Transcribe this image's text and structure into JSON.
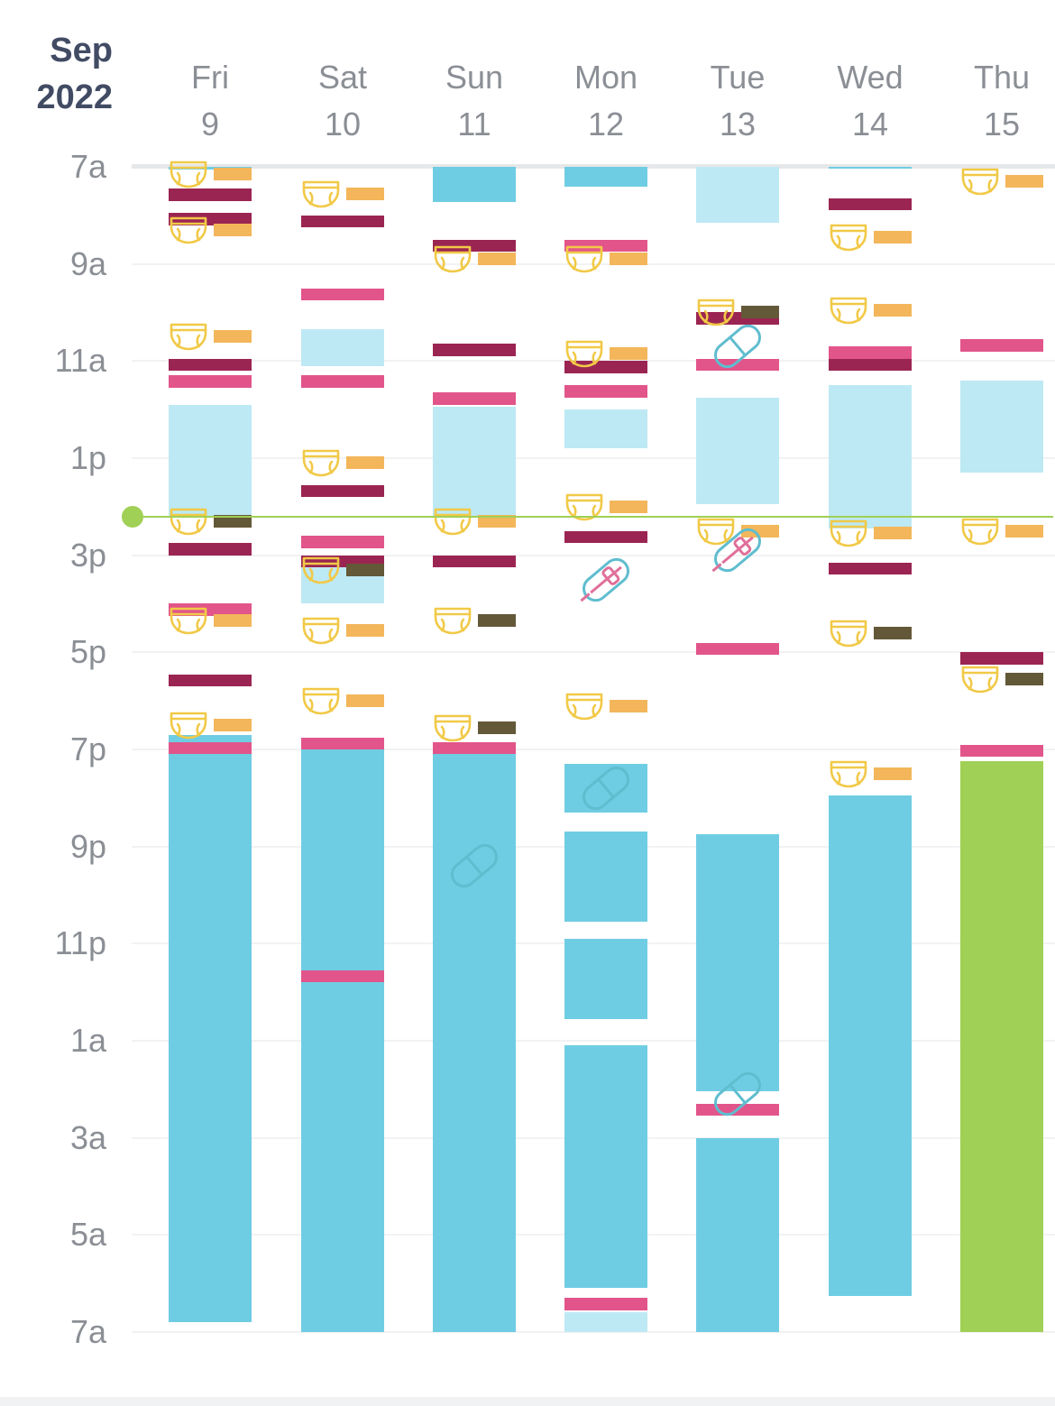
{
  "header": {
    "month": "Sep",
    "year": "2022"
  },
  "days": [
    {
      "dow": "Fri",
      "date": "9"
    },
    {
      "dow": "Sat",
      "date": "10"
    },
    {
      "dow": "Sun",
      "date": "11"
    },
    {
      "dow": "Mon",
      "date": "12"
    },
    {
      "dow": "Tue",
      "date": "13"
    },
    {
      "dow": "Wed",
      "date": "14"
    },
    {
      "dow": "Thu",
      "date": "15"
    }
  ],
  "hour_labels": [
    "7a",
    "9a",
    "11a",
    "1p",
    "3p",
    "5p",
    "7p",
    "9p",
    "11p",
    "1a",
    "3a",
    "5a",
    "7a"
  ],
  "colors": {
    "sleep_night": "#6fcde3",
    "sleep_nap": "#bde9f4",
    "sleep_in_progress": "#a0d055",
    "feed_left": "#e2558a",
    "feed_right": "#9b2552",
    "diaper_wet": "#f3b65a",
    "diaper_dirty": "#635838",
    "diaper_icon": "#f1c947",
    "now": "#a0d055"
  },
  "now_hour": 14.2,
  "events": [
    {
      "day": 0,
      "type": "sleep_night",
      "start": 7.0,
      "end": 7.05
    },
    {
      "day": 0,
      "type": "sleep_nap",
      "start": 11.9,
      "end": 14.2
    },
    {
      "day": 0,
      "type": "sleep_night",
      "start": 18.7,
      "end": 30.8
    },
    {
      "day": 0,
      "type": "feed_right",
      "start": 7.45,
      "end": 7.7
    },
    {
      "day": 0,
      "type": "feed_right",
      "start": 7.95,
      "end": 8.2
    },
    {
      "day": 0,
      "type": "feed_right",
      "start": 10.95,
      "end": 11.2
    },
    {
      "day": 0,
      "type": "feed_left",
      "start": 11.3,
      "end": 11.55
    },
    {
      "day": 0,
      "type": "feed_right",
      "start": 14.75,
      "end": 15.0
    },
    {
      "day": 0,
      "type": "feed_left",
      "start": 16.0,
      "end": 16.25
    },
    {
      "day": 0,
      "type": "feed_right",
      "start": 17.45,
      "end": 17.7
    },
    {
      "day": 0,
      "type": "feed_left",
      "start": 18.85,
      "end": 19.1
    },
    {
      "day": 0,
      "type": "diaper_wet",
      "start": 7.15
    },
    {
      "day": 0,
      "type": "diaper_wet",
      "start": 8.3
    },
    {
      "day": 0,
      "type": "diaper_wet",
      "start": 10.5
    },
    {
      "day": 0,
      "type": "diaper_dirty",
      "start": 14.3
    },
    {
      "day": 0,
      "type": "diaper_wet",
      "start": 16.35
    },
    {
      "day": 0,
      "type": "diaper_wet",
      "start": 18.5
    },
    {
      "day": 1,
      "type": "sleep_nap",
      "start": 10.35,
      "end": 11.1
    },
    {
      "day": 1,
      "type": "sleep_nap",
      "start": 15.2,
      "end": 16.0
    },
    {
      "day": 1,
      "type": "sleep_night",
      "start": 19.0,
      "end": 31.0
    },
    {
      "day": 1,
      "type": "feed_right",
      "start": 8.0,
      "end": 8.25
    },
    {
      "day": 1,
      "type": "feed_left",
      "start": 9.5,
      "end": 9.75
    },
    {
      "day": 1,
      "type": "feed_left",
      "start": 11.3,
      "end": 11.55
    },
    {
      "day": 1,
      "type": "feed_right",
      "start": 13.55,
      "end": 13.8
    },
    {
      "day": 1,
      "type": "feed_left",
      "start": 14.6,
      "end": 14.85
    },
    {
      "day": 1,
      "type": "feed_right",
      "start": 15.0,
      "end": 15.25
    },
    {
      "day": 1,
      "type": "feed_left",
      "start": 18.75,
      "end": 19.0
    },
    {
      "day": 1,
      "type": "feed_left",
      "start": 23.55,
      "end": 23.8
    },
    {
      "day": 1,
      "type": "diaper_wet",
      "start": 7.55
    },
    {
      "day": 1,
      "type": "diaper_wet",
      "start": 13.1
    },
    {
      "day": 1,
      "type": "diaper_dirty",
      "start": 15.3
    },
    {
      "day": 1,
      "type": "diaper_wet",
      "start": 16.55
    },
    {
      "day": 1,
      "type": "diaper_wet",
      "start": 18.0
    },
    {
      "day": 2,
      "type": "sleep_night",
      "start": 7.0,
      "end": 7.72
    },
    {
      "day": 2,
      "type": "sleep_nap",
      "start": 11.95,
      "end": 14.2
    },
    {
      "day": 2,
      "type": "sleep_night",
      "start": 19.0,
      "end": 31.0
    },
    {
      "day": 2,
      "type": "feed_right",
      "start": 8.5,
      "end": 8.75
    },
    {
      "day": 2,
      "type": "feed_right",
      "start": 10.65,
      "end": 10.9
    },
    {
      "day": 2,
      "type": "feed_left",
      "start": 11.65,
      "end": 11.9
    },
    {
      "day": 2,
      "type": "feed_right",
      "start": 15.0,
      "end": 15.25
    },
    {
      "day": 2,
      "type": "feed_left",
      "start": 18.85,
      "end": 19.1
    },
    {
      "day": 2,
      "type": "diaper_wet",
      "start": 8.9
    },
    {
      "day": 2,
      "type": "diaper_wet",
      "start": 14.3
    },
    {
      "day": 2,
      "type": "diaper_dirty",
      "start": 16.35
    },
    {
      "day": 2,
      "type": "diaper_dirty",
      "start": 18.55
    },
    {
      "day": 3,
      "type": "sleep_night",
      "start": 7.0,
      "end": 7.4
    },
    {
      "day": 3,
      "type": "sleep_nap",
      "start": 12.0,
      "end": 12.8
    },
    {
      "day": 3,
      "type": "sleep_night",
      "start": 19.3,
      "end": 20.3
    },
    {
      "day": 3,
      "type": "sleep_night",
      "start": 20.7,
      "end": 22.55
    },
    {
      "day": 3,
      "type": "sleep_night",
      "start": 22.9,
      "end": 24.55
    },
    {
      "day": 3,
      "type": "sleep_night",
      "start": 25.1,
      "end": 30.1
    },
    {
      "day": 3,
      "type": "sleep_nap",
      "start": 30.6,
      "end": 31.0
    },
    {
      "day": 3,
      "type": "feed_left",
      "start": 8.5,
      "end": 8.75
    },
    {
      "day": 3,
      "type": "feed_right",
      "start": 11.0,
      "end": 11.25
    },
    {
      "day": 3,
      "type": "feed_left",
      "start": 11.5,
      "end": 11.75
    },
    {
      "day": 3,
      "type": "feed_right",
      "start": 14.5,
      "end": 14.75
    },
    {
      "day": 3,
      "type": "feed_left",
      "start": 30.3,
      "end": 30.55
    },
    {
      "day": 3,
      "type": "diaper_wet",
      "start": 8.9
    },
    {
      "day": 3,
      "type": "diaper_wet",
      "start": 10.85
    },
    {
      "day": 3,
      "type": "diaper_wet",
      "start": 14.0
    },
    {
      "day": 3,
      "type": "diaper_wet",
      "start": 18.1
    },
    {
      "day": 4,
      "type": "sleep_nap",
      "start": 7.0,
      "end": 8.15
    },
    {
      "day": 4,
      "type": "sleep_nap",
      "start": 11.75,
      "end": 13.95
    },
    {
      "day": 4,
      "type": "sleep_night",
      "start": 20.75,
      "end": 26.05
    },
    {
      "day": 4,
      "type": "sleep_night",
      "start": 27.0,
      "end": 31.0
    },
    {
      "day": 4,
      "type": "feed_right",
      "start": 10.0,
      "end": 10.25
    },
    {
      "day": 4,
      "type": "feed_left",
      "start": 10.95,
      "end": 11.2
    },
    {
      "day": 4,
      "type": "feed_left",
      "start": 16.8,
      "end": 17.05
    },
    {
      "day": 4,
      "type": "feed_left",
      "start": 26.3,
      "end": 26.55
    },
    {
      "day": 4,
      "type": "diaper_dirty",
      "start": 10.0
    },
    {
      "day": 4,
      "type": "diaper_wet",
      "start": 14.5
    },
    {
      "day": 5,
      "type": "sleep_night",
      "start": 7.0,
      "end": 7.02
    },
    {
      "day": 5,
      "type": "sleep_nap",
      "start": 11.5,
      "end": 14.45
    },
    {
      "day": 5,
      "type": "sleep_night",
      "start": 19.95,
      "end": 30.25
    },
    {
      "day": 5,
      "type": "feed_right",
      "start": 7.65,
      "end": 7.9
    },
    {
      "day": 5,
      "type": "feed_left",
      "start": 10.7,
      "end": 10.95
    },
    {
      "day": 5,
      "type": "feed_right",
      "start": 10.95,
      "end": 11.2
    },
    {
      "day": 5,
      "type": "feed_right",
      "start": 15.15,
      "end": 15.4
    },
    {
      "day": 5,
      "type": "diaper_wet",
      "start": 8.45
    },
    {
      "day": 5,
      "type": "diaper_wet",
      "start": 9.95
    },
    {
      "day": 5,
      "type": "diaper_wet",
      "start": 14.55
    },
    {
      "day": 5,
      "type": "diaper_dirty",
      "start": 16.6
    },
    {
      "day": 5,
      "type": "diaper_wet",
      "start": 19.5
    },
    {
      "day": 6,
      "type": "sleep_nap",
      "start": 11.4,
      "end": 13.3
    },
    {
      "day": 6,
      "type": "sleep_in_progress",
      "start": 19.25,
      "end": 31.0
    },
    {
      "day": 6,
      "type": "feed_left",
      "start": 10.55,
      "end": 10.8
    },
    {
      "day": 6,
      "type": "feed_right",
      "start": 17.0,
      "end": 17.25
    },
    {
      "day": 6,
      "type": "feed_left",
      "start": 18.9,
      "end": 19.15
    },
    {
      "day": 6,
      "type": "diaper_wet",
      "start": 7.3
    },
    {
      "day": 6,
      "type": "diaper_wet",
      "start": 14.5
    },
    {
      "day": 6,
      "type": "diaper_dirty",
      "start": 17.55
    }
  ],
  "meds": [
    {
      "day": 3,
      "start": 15.5,
      "style": "dual"
    },
    {
      "day": 3,
      "start": 19.8,
      "style": "blue"
    },
    {
      "day": 2,
      "start": 21.4,
      "style": "blue"
    },
    {
      "day": 4,
      "start": 10.7,
      "style": "blue"
    },
    {
      "day": 4,
      "start": 14.9,
      "style": "dual"
    },
    {
      "day": 4,
      "start": 26.1,
      "style": "blue"
    }
  ]
}
